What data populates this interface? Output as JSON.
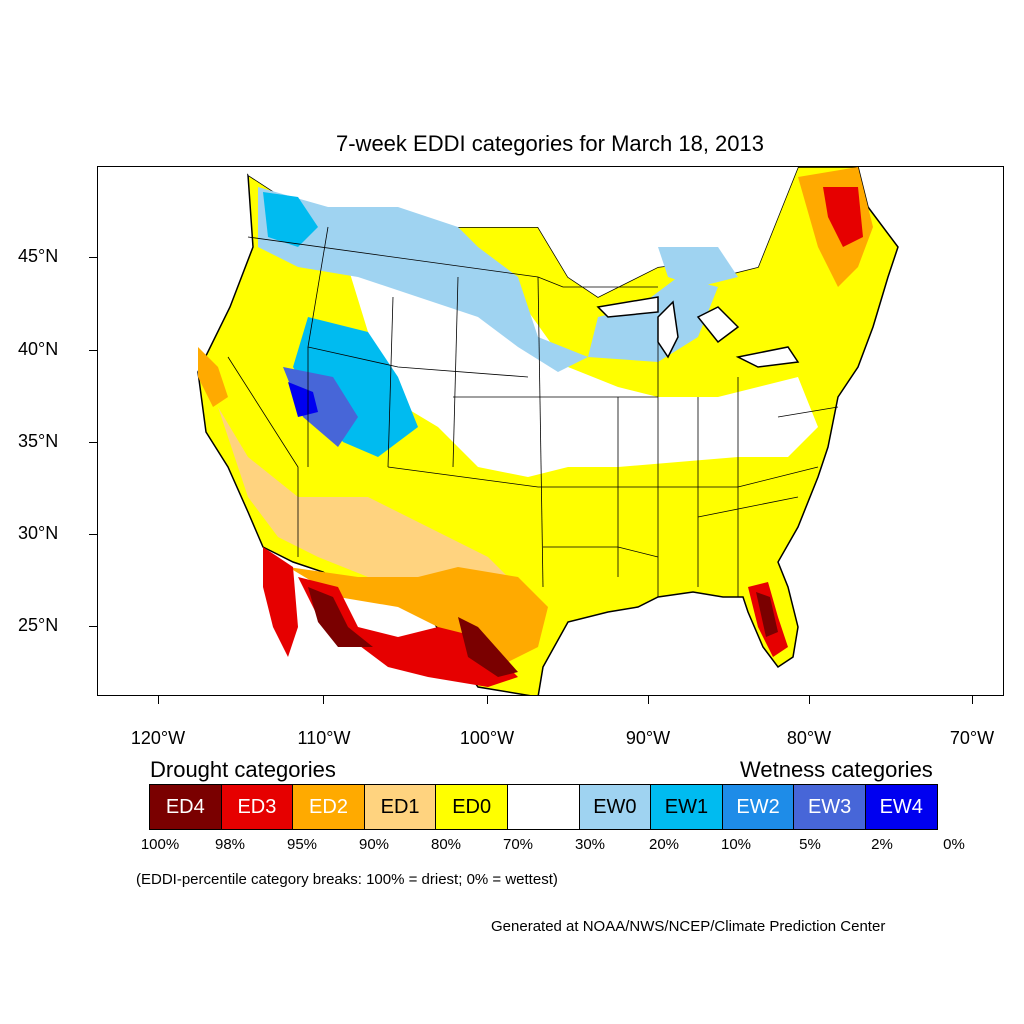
{
  "title": "7-week EDDI categories for March 18, 2013",
  "axes": {
    "lat_labels": [
      "45°N",
      "40°N",
      "35°N",
      "30°N",
      "25°N"
    ],
    "lon_labels": [
      "120°W",
      "110°W",
      "100°W",
      "90°W",
      "80°W",
      "70°W"
    ]
  },
  "legend": {
    "drought_title": "Drought categories",
    "wetness_title": "Wetness categories",
    "categories": [
      {
        "label": "ED4",
        "color": "#7a0000",
        "text_color": "#ffffff"
      },
      {
        "label": "ED3",
        "color": "#e60000",
        "text_color": "#ffffff"
      },
      {
        "label": "ED2",
        "color": "#ffaa00",
        "text_color": "#ffffff"
      },
      {
        "label": "ED1",
        "color": "#ffd37f",
        "text_color": "#000000"
      },
      {
        "label": "ED0",
        "color": "#ffff00",
        "text_color": "#000000"
      },
      {
        "label": "",
        "color": "#ffffff",
        "text_color": "#000000"
      },
      {
        "label": "EW0",
        "color": "#9fd3f1",
        "text_color": "#000000"
      },
      {
        "label": "EW1",
        "color": "#00bbf0",
        "text_color": "#000000"
      },
      {
        "label": "EW2",
        "color": "#1e8ce8",
        "text_color": "#ffffff"
      },
      {
        "label": "EW3",
        "color": "#4766d8",
        "text_color": "#ffffff"
      },
      {
        "label": "EW4",
        "color": "#0000f0",
        "text_color": "#ffffff"
      }
    ],
    "breaks": [
      "100%",
      "98%",
      "95%",
      "90%",
      "80%",
      "70%",
      "30%",
      "20%",
      "10%",
      "5%",
      "2%",
      "0%"
    ]
  },
  "note": "(EDDI-percentile category breaks: 100% = driest; 0% = wettest)",
  "credit": "Generated at NOAA/NWS/NCEP/Climate Prediction Center"
}
